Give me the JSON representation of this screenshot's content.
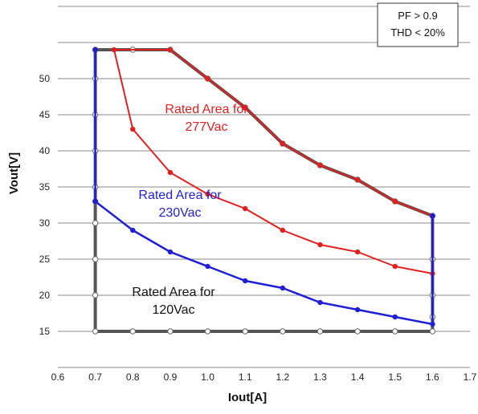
{
  "chart_data": {
    "type": "line",
    "xlabel": "Iout[A]",
    "ylabel": "Vout[V]",
    "xlim": [
      0.6,
      1.7
    ],
    "ylim": [
      10,
      60
    ],
    "x_ticks": [
      "0.6",
      "0.7",
      "0.8",
      "0.9",
      "1.0",
      "1.1",
      "1.2",
      "1.3",
      "1.4",
      "1.5",
      "1.6",
      "1.7"
    ],
    "y_ticks": [
      "15",
      "20",
      "25",
      "30",
      "35",
      "40",
      "45",
      "50"
    ],
    "grid": "horizontal",
    "legend_box": {
      "lines": [
        "PF > 0.9",
        "THD < 20%"
      ]
    },
    "series": [
      {
        "name": "120Vac",
        "label": "Rated Area for\n120Vac",
        "color": "#555555",
        "width": 4,
        "points": [
          [
            0.7,
            15
          ],
          [
            0.7,
            20
          ],
          [
            0.7,
            25
          ],
          [
            0.7,
            30
          ],
          [
            0.7,
            33
          ],
          [
            0.7,
            35
          ],
          [
            0.7,
            40
          ],
          [
            0.7,
            45
          ],
          [
            0.7,
            50
          ],
          [
            0.7,
            54
          ],
          [
            0.8,
            54
          ],
          [
            0.9,
            54
          ],
          [
            1.0,
            50
          ],
          [
            1.1,
            46
          ],
          [
            1.2,
            41
          ],
          [
            1.3,
            38
          ],
          [
            1.4,
            36
          ],
          [
            1.5,
            33
          ],
          [
            1.6,
            31
          ],
          [
            1.6,
            25
          ],
          [
            1.6,
            20
          ],
          [
            1.6,
            17
          ],
          [
            1.6,
            15
          ],
          [
            1.5,
            15
          ],
          [
            1.4,
            15
          ],
          [
            1.3,
            15
          ],
          [
            1.2,
            15
          ],
          [
            1.1,
            15
          ],
          [
            1.0,
            15
          ],
          [
            0.9,
            15
          ],
          [
            0.8,
            15
          ],
          [
            0.7,
            15
          ]
        ],
        "markers": "hollow"
      },
      {
        "name": "277Vac",
        "label": "Rated Area for\n277Vac",
        "color": "#e21f1f",
        "width": 2,
        "points": [
          [
            0.75,
            54
          ],
          [
            0.8,
            43
          ],
          [
            0.9,
            37
          ],
          [
            1.0,
            34
          ],
          [
            1.1,
            32
          ],
          [
            1.2,
            29
          ],
          [
            1.3,
            27
          ],
          [
            1.4,
            26
          ],
          [
            1.5,
            24
          ],
          [
            1.6,
            23
          ],
          [
            1.6,
            31
          ],
          [
            1.5,
            33
          ],
          [
            1.4,
            36
          ],
          [
            1.3,
            38
          ],
          [
            1.2,
            41
          ],
          [
            1.1,
            46
          ],
          [
            1.0,
            50
          ],
          [
            0.9,
            54
          ],
          [
            0.75,
            54
          ]
        ],
        "markers": "filled"
      },
      {
        "name": "230Vac",
        "label": "Rated Area for\n230Vac",
        "color": "#1f1fd6",
        "width": 2.5,
        "points": [
          [
            0.7,
            54
          ],
          [
            0.7,
            33
          ],
          [
            0.8,
            29
          ],
          [
            0.9,
            26
          ],
          [
            1.0,
            24
          ],
          [
            1.1,
            22
          ],
          [
            1.2,
            21
          ],
          [
            1.3,
            19
          ],
          [
            1.4,
            18
          ],
          [
            1.5,
            17
          ],
          [
            1.6,
            16
          ],
          [
            1.6,
            31
          ]
        ],
        "markers": "filled"
      }
    ]
  }
}
